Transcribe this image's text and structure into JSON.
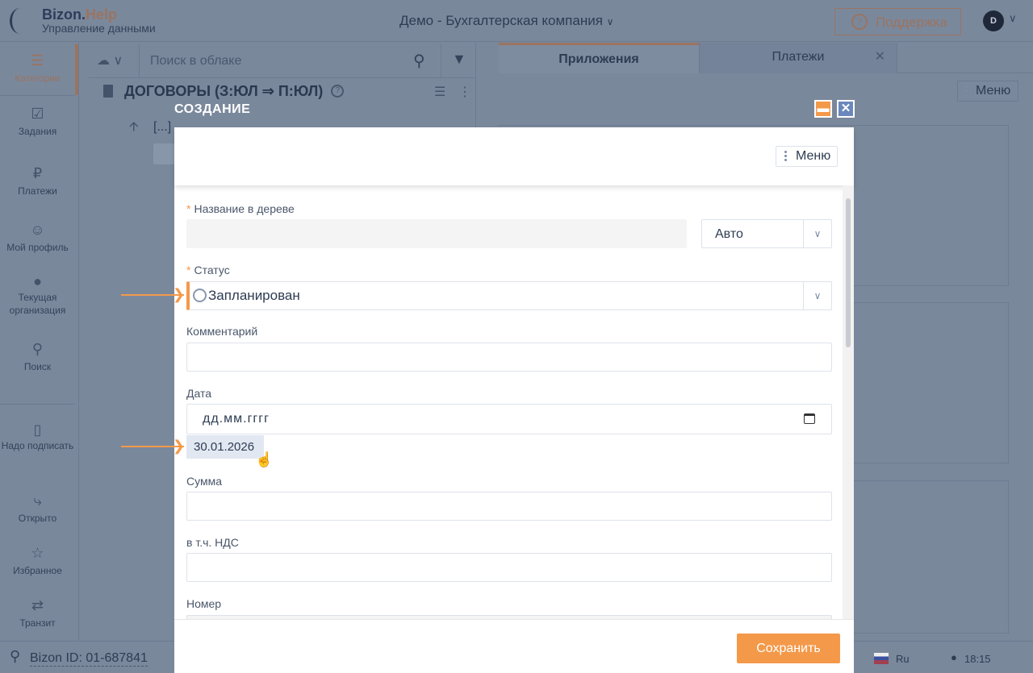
{
  "header": {
    "logo_brand": "Bizon.",
    "logo_brand_accent": "Help",
    "logo_subtitle": "Управление данными",
    "company": "Демо - Бухгалтерская компания",
    "support_label": "Поддержка",
    "avatar_initial": "D"
  },
  "sidebar": {
    "items": [
      {
        "label": "Категории",
        "icon": "menu-icon"
      },
      {
        "label": "Задания",
        "icon": "task-check-icon"
      },
      {
        "label": "Платежи",
        "icon": "ruble-icon"
      },
      {
        "label": "Мой профиль",
        "icon": "user-icon"
      },
      {
        "label": "Текущая организация",
        "icon": "location-pin-icon"
      },
      {
        "label": "Поиск",
        "icon": "search-icon"
      },
      {
        "label": "Надо подписать",
        "icon": "usb-key-icon"
      },
      {
        "label": "Открыто",
        "icon": "share-icon"
      },
      {
        "label": "Избранное",
        "icon": "star-icon"
      },
      {
        "label": "Транзит",
        "icon": "transfer-icon"
      }
    ]
  },
  "panel": {
    "search_placeholder": "Поиск в облаке",
    "title": "ДОГОВОРЫ (З:ЮЛ ⇒ П:ЮЛ)",
    "tree_up": "[...]"
  },
  "right": {
    "tabs": [
      {
        "label": "Приложения",
        "active": true
      },
      {
        "label": "Платежи",
        "active": false
      }
    ],
    "menu_label": "Меню"
  },
  "footer": {
    "bizon_id": "Bizon ID: 01-687841",
    "lang": "Ru",
    "time": "18:15"
  },
  "modal": {
    "title": "СОЗДАНИЕ",
    "menu_label": "Меню",
    "save_label": "Сохранить",
    "fields": {
      "name": {
        "label": "Название в дереве",
        "required": true,
        "value": "",
        "mode": "Авто"
      },
      "status": {
        "label": "Статус",
        "required": true,
        "value": "Запланирован"
      },
      "comment": {
        "label": "Комментарий",
        "value": ""
      },
      "date": {
        "label": "Дата",
        "placeholder": "дд.мм.гггг",
        "suggestion": "30.01.2026"
      },
      "sum": {
        "label": "Сумма",
        "value": ""
      },
      "vat": {
        "label": "в т.ч. НДС",
        "value": ""
      },
      "number": {
        "label": "Номер",
        "value": ""
      }
    }
  },
  "colors": {
    "accent": "#f4994a",
    "overlay": "#7a889c"
  }
}
